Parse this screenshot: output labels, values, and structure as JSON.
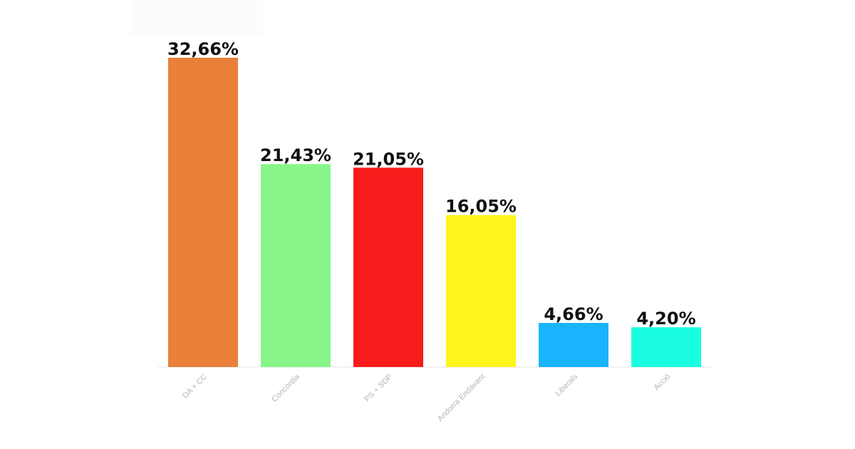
{
  "chart_data": {
    "type": "bar",
    "categories": [
      "DA + CC",
      "Concòrdia",
      "PS + SDP",
      "Andorra Endavant",
      "Liberals",
      "Acció"
    ],
    "values": [
      32.66,
      21.43,
      21.05,
      16.05,
      4.66,
      4.2
    ],
    "data_labels": [
      "32,66%",
      "21,43%",
      "21,05%",
      "16,05%",
      "4,66%",
      "4,20%"
    ],
    "colors": [
      "#E8803A",
      "#88F58A",
      "#F81B1B",
      "#FEF51C",
      "#1AB3FF",
      "#1BFDE0"
    ],
    "title": "",
    "xlabel": "",
    "ylabel": "",
    "ylim": [
      0,
      32.66
    ],
    "grid": false,
    "legend": "none"
  }
}
